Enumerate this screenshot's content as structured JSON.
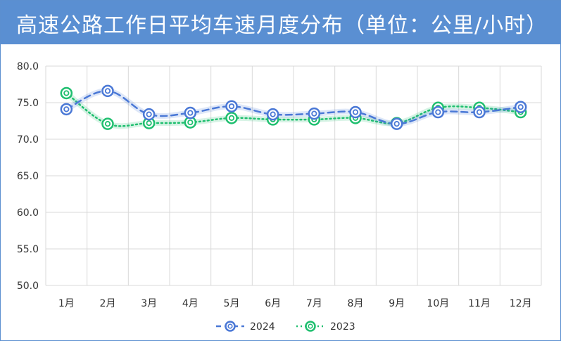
{
  "title": "高速公路工作日平均车速月度分布（单位：公里/小时）",
  "colors": {
    "title_bg": "#5a8fd2",
    "series_2024": "#4a78d6",
    "series_2023": "#1fbf6f",
    "grid": "#d9d9d9"
  },
  "chart_data": {
    "type": "line",
    "title": "高速公路工作日平均车速月度分布（单位：公里/小时）",
    "categories": [
      "1月",
      "2月",
      "3月",
      "4月",
      "5月",
      "6月",
      "7月",
      "8月",
      "9月",
      "10月",
      "11月",
      "12月"
    ],
    "y_ticks": [
      "80.0",
      "75.0",
      "70.0",
      "65.0",
      "60.0",
      "55.0",
      "50.0"
    ],
    "ylim": [
      50,
      80
    ],
    "grid": true,
    "legend_position": "bottom",
    "series": [
      {
        "name": "2024",
        "color": "#4a78d6",
        "line_style": "dashed",
        "values": [
          74.1,
          76.6,
          73.4,
          73.6,
          74.5,
          73.4,
          73.5,
          73.7,
          72.1,
          73.7,
          73.7,
          74.4
        ]
      },
      {
        "name": "2023",
        "color": "#1fbf6f",
        "line_style": "dotted",
        "values": [
          76.3,
          72.1,
          72.2,
          72.3,
          72.9,
          72.7,
          72.7,
          72.9,
          72.2,
          74.3,
          74.3,
          73.7
        ]
      }
    ]
  }
}
